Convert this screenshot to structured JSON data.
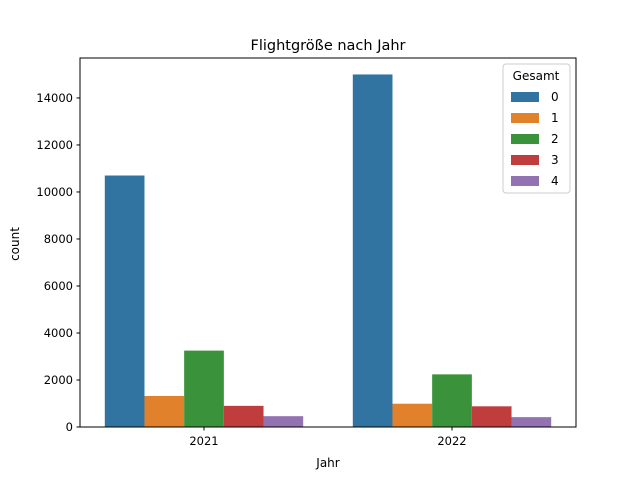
{
  "chart_data": {
    "type": "bar",
    "title": "Flightgröße nach Jahr",
    "xlabel": "Jahr",
    "ylabel": "count",
    "categories": [
      "2021",
      "2022"
    ],
    "ylim": [
      0,
      15700
    ],
    "yticks": [
      0,
      2000,
      4000,
      6000,
      8000,
      10000,
      12000,
      14000
    ],
    "grid": false,
    "legend": {
      "title": "Gesamt",
      "placement": "top-right"
    },
    "series": [
      {
        "name": "0",
        "color": "#3274a1",
        "values": [
          10700,
          15000
        ]
      },
      {
        "name": "1",
        "color": "#e1812c",
        "values": [
          1320,
          990
        ]
      },
      {
        "name": "2",
        "color": "#3a923a",
        "values": [
          3250,
          2240
        ]
      },
      {
        "name": "3",
        "color": "#c03d3e",
        "values": [
          900,
          880
        ]
      },
      {
        "name": "4",
        "color": "#9372b2",
        "values": [
          460,
          420
        ]
      }
    ]
  }
}
